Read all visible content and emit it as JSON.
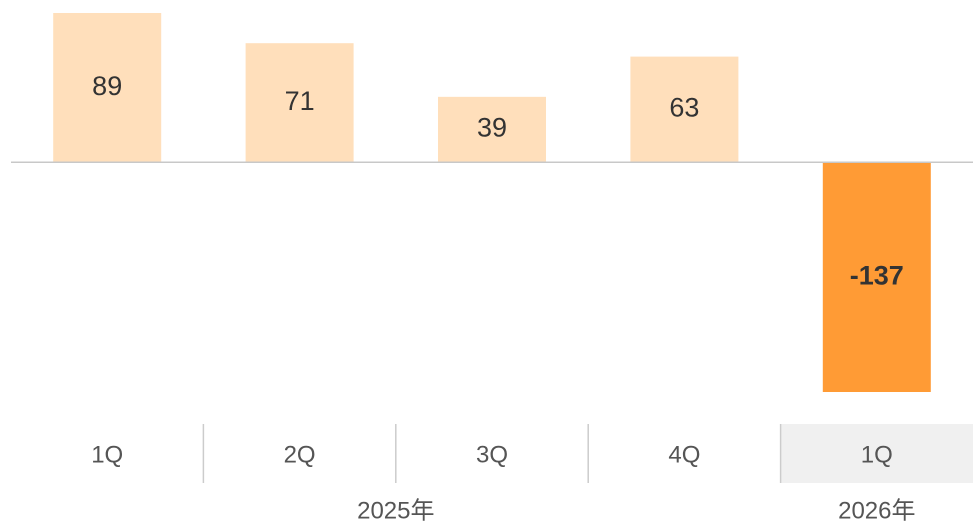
{
  "chart_data": {
    "type": "bar",
    "categories": [
      "1Q",
      "2Q",
      "3Q",
      "4Q",
      "1Q"
    ],
    "category_groups": [
      "2025年",
      "2025年",
      "2025年",
      "2025年",
      "2026年"
    ],
    "values": [
      89,
      71,
      39,
      63,
      -137
    ],
    "colors": [
      "#ffdfbb",
      "#ffdfbb",
      "#ffdfbb",
      "#ffdfbb",
      "#ff9b35"
    ],
    "highlight_category": 4
  }
}
